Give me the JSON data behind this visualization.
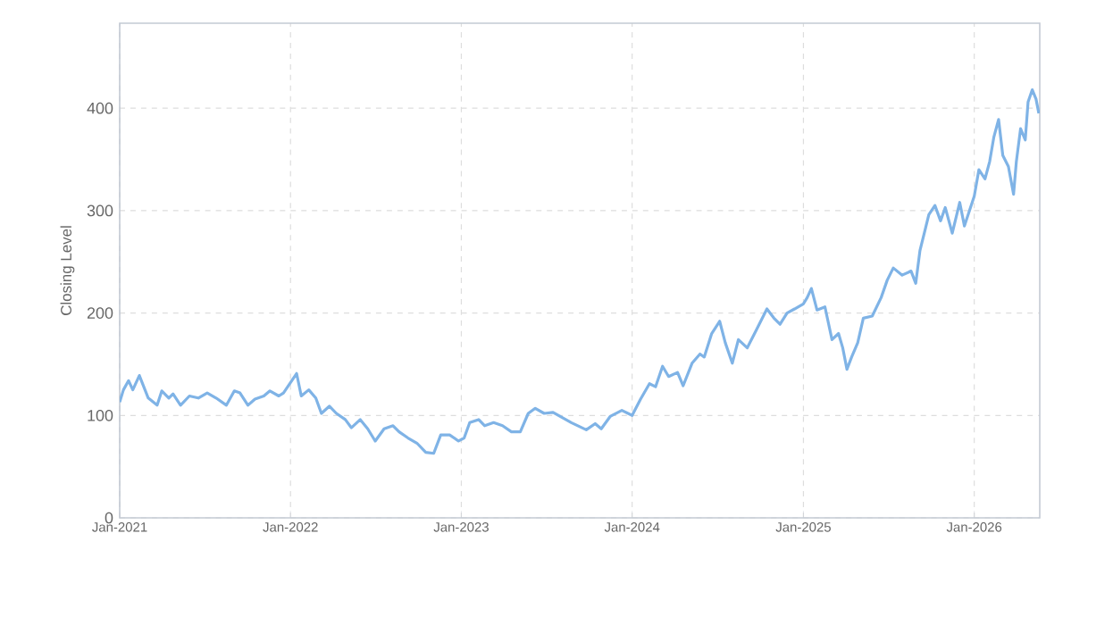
{
  "chart_data": {
    "type": "line",
    "ylabel": "Closing Level",
    "x": [
      "2021-01-01",
      "2021-01-09",
      "2021-01-20",
      "2021-01-29",
      "2021-02-12",
      "2021-03-03",
      "2021-03-22",
      "2021-04-01",
      "2021-04-16",
      "2021-04-25",
      "2021-05-11",
      "2021-05-30",
      "2021-06-18",
      "2021-07-07",
      "2021-07-26",
      "2021-08-17",
      "2021-09-03",
      "2021-09-15",
      "2021-10-02",
      "2021-10-17",
      "2021-11-05",
      "2021-11-18",
      "2021-12-07",
      "2021-12-17",
      "2021-12-26",
      "2022-01-14",
      "2022-01-24",
      "2022-02-09",
      "2022-02-24",
      "2022-03-08",
      "2022-03-25",
      "2022-04-09",
      "2022-04-28",
      "2022-05-11",
      "2022-05-30",
      "2022-06-15",
      "2022-07-01",
      "2022-07-20",
      "2022-08-08",
      "2022-08-21",
      "2022-09-09",
      "2022-09-28",
      "2022-10-17",
      "2022-11-03",
      "2022-11-18",
      "2022-12-07",
      "2022-12-26",
      "2023-01-07",
      "2023-01-19",
      "2023-02-07",
      "2023-02-20",
      "2023-03-11",
      "2023-03-30",
      "2023-04-18",
      "2023-05-07",
      "2023-05-24",
      "2023-06-08",
      "2023-06-27",
      "2023-07-16",
      "2023-08-24",
      "2023-09-25",
      "2023-10-14",
      "2023-10-27",
      "2023-11-15",
      "2023-12-10",
      "2024-01-01",
      "2024-01-19",
      "2024-02-07",
      "2024-02-20",
      "2024-03-06",
      "2024-03-19",
      "2024-04-07",
      "2024-04-19",
      "2024-05-08",
      "2024-05-25",
      "2024-06-03",
      "2024-06-19",
      "2024-07-06",
      "2024-07-18",
      "2024-08-02",
      "2024-08-15",
      "2024-09-03",
      "2024-09-22",
      "2024-10-15",
      "2024-10-30",
      "2024-11-12",
      "2024-11-27",
      "2024-12-13",
      "2025-01-01",
      "2025-01-09",
      "2025-01-18",
      "2025-01-30",
      "2025-02-16",
      "2025-03-03",
      "2025-03-17",
      "2025-03-26",
      "2025-04-04",
      "2025-04-14",
      "2025-04-27",
      "2025-05-09",
      "2025-05-28",
      "2025-06-16",
      "2025-06-29",
      "2025-07-12",
      "2025-07-31",
      "2025-08-19",
      "2025-08-29",
      "2025-09-07",
      "2025-09-26",
      "2025-10-09",
      "2025-10-21",
      "2025-10-31",
      "2025-11-15",
      "2025-12-01",
      "2025-12-11",
      "2026-01-01",
      "2026-01-11",
      "2026-01-24",
      "2026-02-03",
      "2026-02-12",
      "2026-02-22",
      "2026-03-03",
      "2026-03-15",
      "2026-03-26",
      "2026-04-01",
      "2026-04-10",
      "2026-04-20",
      "2026-04-26",
      "2026-05-05",
      "2026-05-13",
      "2026-05-19"
    ],
    "series": [
      {
        "color": "#7fb3e6",
        "values": [
          113,
          125,
          134,
          125,
          139,
          117,
          110,
          124,
          117,
          121,
          110,
          119,
          117,
          122,
          117,
          110,
          124,
          122,
          110,
          116,
          119,
          124,
          119,
          122,
          128,
          141,
          119,
          125,
          117,
          102,
          109,
          102,
          96,
          88,
          96,
          87,
          75,
          87,
          90,
          84,
          78,
          73,
          64,
          63,
          81,
          81,
          75,
          78,
          93,
          96,
          90,
          93,
          90,
          84,
          84,
          102,
          107,
          102,
          103,
          93,
          86,
          92,
          87,
          99,
          105,
          100,
          116,
          131,
          128,
          148,
          138,
          142,
          129,
          151,
          160,
          157,
          180,
          192,
          171,
          151,
          174,
          166,
          183,
          204,
          195,
          189,
          200,
          204,
          209,
          215,
          224,
          203,
          206,
          174,
          180,
          166,
          145,
          157,
          171,
          195,
          197,
          215,
          232,
          244,
          237,
          241,
          229,
          261,
          296,
          305,
          290,
          303,
          278,
          308,
          285,
          314,
          340,
          331,
          348,
          372,
          389,
          354,
          343,
          316,
          348,
          380,
          369,
          406,
          418,
          409,
          395
        ]
      }
    ],
    "xlim": [
      "2021-01-01",
      "2026-05-21"
    ],
    "xticks": [
      {
        "value": "2021-01-01",
        "label": "Jan-2021"
      },
      {
        "value": "2022-01-01",
        "label": "Jan-2022"
      },
      {
        "value": "2023-01-01",
        "label": "Jan-2023"
      },
      {
        "value": "2024-01-01",
        "label": "Jan-2024"
      },
      {
        "value": "2025-01-01",
        "label": "Jan-2025"
      },
      {
        "value": "2026-01-01",
        "label": "Jan-2026"
      }
    ],
    "ylim": [
      0,
      483
    ],
    "yticks": [
      0,
      100,
      200,
      300,
      400
    ],
    "grid": true,
    "marker": "none",
    "line_style": "solid"
  }
}
